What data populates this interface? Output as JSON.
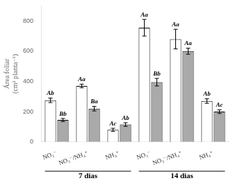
{
  "chart_data": {
    "type": "bar",
    "categories": [
      "NO₃⁻",
      "NO₃⁻/NH₄⁺",
      "NH₄⁺",
      "NO₃⁻",
      "NO₃⁻/NH₄⁺",
      "NH₄⁺"
    ],
    "category_groups": [
      "7 dias",
      "7 dias",
      "7 dias",
      "14 dias",
      "14 dias",
      "14 dias"
    ],
    "series": [
      {
        "color": "#ffffff",
        "values": [
          275,
          370,
          80,
          755,
          680,
          270
        ],
        "errors": [
          15,
          12,
          10,
          55,
          65,
          15
        ],
        "annotations": [
          "Ab",
          "Aa",
          "Ac",
          "Aa",
          "Aa",
          "Ab"
        ]
      },
      {
        "color": "#aaaaaa",
        "values": [
          145,
          220,
          115,
          395,
          600,
          200
        ],
        "errors": [
          10,
          15,
          12,
          25,
          20,
          12
        ],
        "annotations": [
          "Bb",
          "Ba",
          "Ab",
          "Bb",
          "Aa",
          "Ac"
        ]
      }
    ],
    "y_label": "Área foliar\n(cm² planta⁻¹)",
    "ylim": [
      0,
      900
    ],
    "yticks": [
      0,
      200,
      400,
      600,
      800
    ],
    "grid": false
  }
}
